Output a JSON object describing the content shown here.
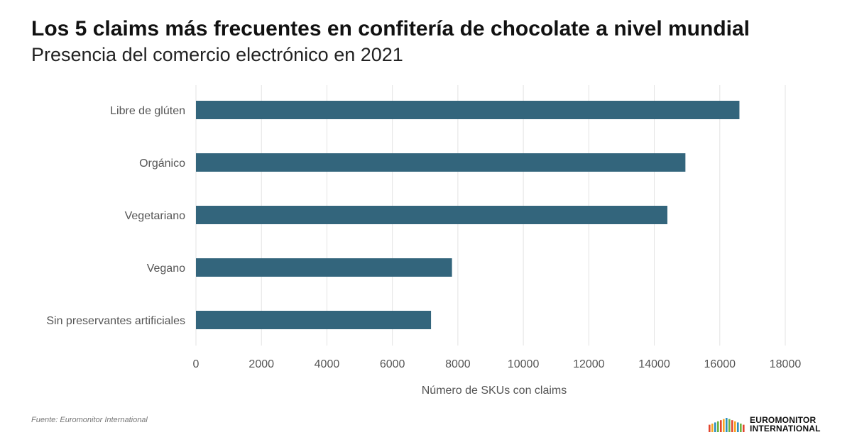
{
  "header": {
    "title": "Los 5 claims más frecuentes en confitería de chocolate a nivel mundial",
    "subtitle": "Presencia del comercio electrónico en 2021"
  },
  "footer": {
    "source": "Fuente: Euromonitor International",
    "logo_line1": "EUROMONITOR",
    "logo_line2": "INTERNATIONAL"
  },
  "colors": {
    "bar": "#33657c",
    "grid": "#e3e3e3",
    "logo_stripes": [
      "#e2452f",
      "#f5a623",
      "#2b8fbf",
      "#6cb33f"
    ]
  },
  "chart_data": {
    "type": "bar",
    "orientation": "horizontal",
    "categories": [
      "Libre de glúten",
      "Orgánico",
      "Vegetariano",
      "Vegano",
      "Sin preservantes artificiales"
    ],
    "values": [
      16600,
      14950,
      14400,
      7820,
      7180
    ],
    "xlabel": "Número de SKUs con claims",
    "xlim": [
      0,
      18000
    ],
    "xticks": [
      "0",
      "2000",
      "4000",
      "6000",
      "8000",
      "10000",
      "12000",
      "14000",
      "16000",
      "18000"
    ],
    "grid": "vertical"
  }
}
